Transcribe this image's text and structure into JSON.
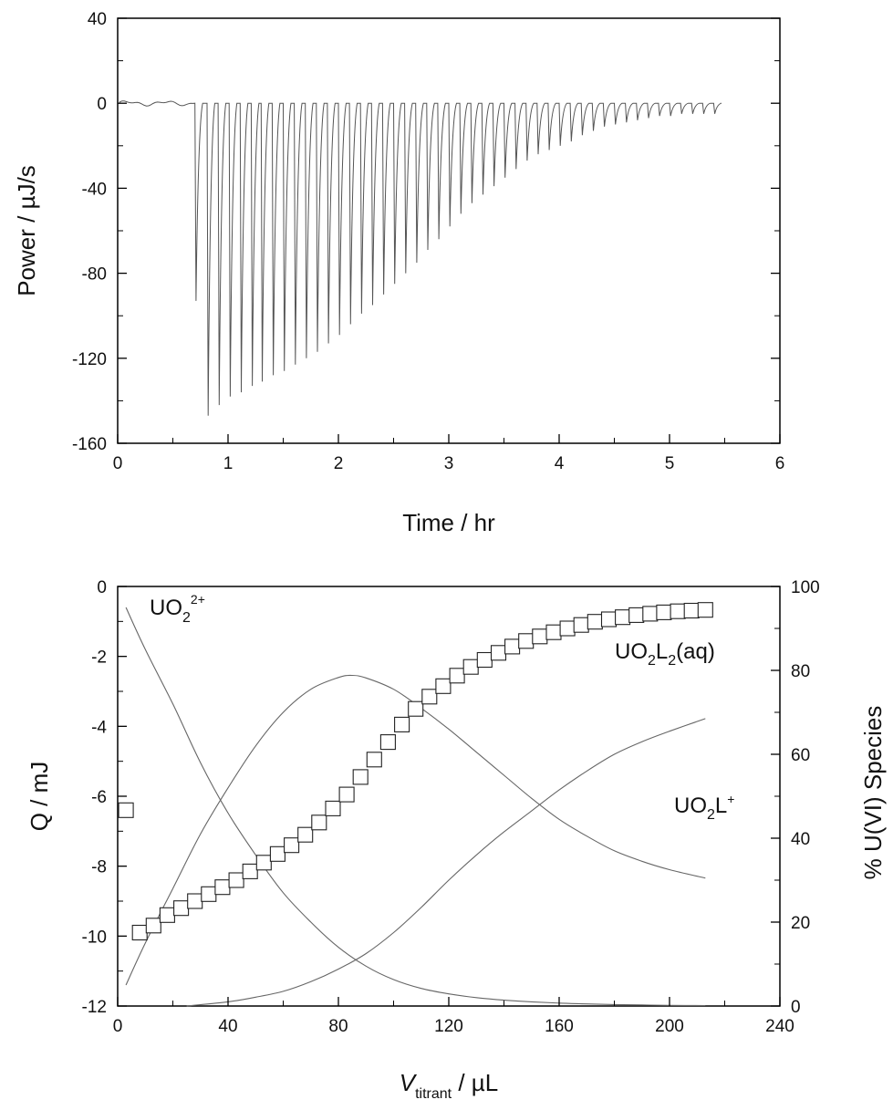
{
  "charts": {
    "top": {
      "type": "line",
      "xlabel": "Time / hr",
      "ylabel": "Power / µJ/s",
      "xlim": [
        0,
        6
      ],
      "ylim": [
        -160,
        40
      ],
      "xticks": [
        "0",
        "1",
        "2",
        "3",
        "4",
        "5",
        "6"
      ],
      "yticks": [
        "40",
        "0",
        "-40",
        "-80",
        "-120",
        "-160"
      ]
    },
    "bottom": {
      "xlabel_main": "V",
      "xlabel_sub": "titrant",
      "xlabel_unit": " / µL",
      "ylabel_left": "Q / mJ",
      "ylabel_right": "% U(VI) Species",
      "xticks": [
        "0",
        "40",
        "80",
        "120",
        "160",
        "200",
        "240"
      ],
      "yticks_left": [
        "0",
        "-2",
        "-4",
        "-6",
        "-8",
        "-10",
        "-12"
      ],
      "yticks_right": [
        "100",
        "80",
        "60",
        "40",
        "20",
        "0"
      ],
      "species": {
        "free": {
          "base": "UO",
          "sub": "2",
          "sup": "2+"
        },
        "ml2": {
          "base": "UO",
          "sub": "2",
          "mid": "L",
          "sub2": "2",
          "tail": "(aq)"
        },
        "ml": {
          "base": "UO",
          "sub": "2",
          "mid": "L",
          "sup": "+"
        }
      }
    }
  },
  "chart_data": [
    {
      "type": "line",
      "xlabel": "Time / hr",
      "ylabel": "Power / µJ/s",
      "xlim": [
        0,
        6
      ],
      "ylim": [
        -160,
        40
      ],
      "baseline_end_hr": 0.7,
      "peaks": {
        "time_hr": [
          0.71,
          0.82,
          0.92,
          1.02,
          1.12,
          1.22,
          1.31,
          1.41,
          1.51,
          1.61,
          1.71,
          1.81,
          1.91,
          2.01,
          2.11,
          2.21,
          2.31,
          2.41,
          2.51,
          2.61,
          2.71,
          2.81,
          2.91,
          3.01,
          3.11,
          3.21,
          3.31,
          3.41,
          3.51,
          3.61,
          3.71,
          3.81,
          3.91,
          4.01,
          4.11,
          4.21,
          4.31,
          4.41,
          4.51,
          4.61,
          4.71,
          4.81,
          4.91,
          5.01,
          5.11,
          5.21,
          5.31,
          5.41
        ],
        "power_uJs": [
          -93,
          -147,
          -142,
          -138,
          -136,
          -133,
          -131,
          -128,
          -126,
          -123,
          -120,
          -117,
          -113,
          -109,
          -104,
          -99,
          -95,
          -90,
          -85,
          -80,
          -75,
          -69,
          -64,
          -58,
          -52,
          -47,
          -43,
          -39,
          -35,
          -31,
          -27,
          -24,
          -22,
          -20,
          -18,
          -15,
          -13,
          -11,
          -10,
          -9,
          -8,
          -7,
          -6,
          -6,
          -5,
          -5,
          -5,
          -5
        ]
      }
    },
    {
      "type": "scatter",
      "xlabel": "V titrant / µL",
      "ylabel": "Q / mJ",
      "y2label": "% U(VI) Species",
      "xlim": [
        0,
        240
      ],
      "ylim": [
        -12,
        0
      ],
      "y2lim": [
        0,
        100
      ],
      "series": [
        {
          "name": "Q",
          "marker": "open-square",
          "x": [
            3,
            8,
            13,
            18,
            23,
            28,
            33,
            38,
            43,
            48,
            53,
            58,
            63,
            68,
            73,
            78,
            83,
            88,
            93,
            98,
            103,
            108,
            113,
            118,
            123,
            128,
            133,
            138,
            143,
            148,
            153,
            158,
            163,
            168,
            173,
            178,
            183,
            188,
            193,
            198,
            203,
            208,
            213
          ],
          "y": [
            -6.4,
            -9.9,
            -9.7,
            -9.4,
            -9.2,
            -9.0,
            -8.8,
            -8.6,
            -8.4,
            -8.15,
            -7.9,
            -7.65,
            -7.4,
            -7.1,
            -6.75,
            -6.35,
            -5.95,
            -5.45,
            -4.95,
            -4.45,
            -3.95,
            -3.5,
            -3.15,
            -2.85,
            -2.55,
            -2.3,
            -2.1,
            -1.9,
            -1.72,
            -1.56,
            -1.43,
            -1.31,
            -1.2,
            -1.1,
            -1.01,
            -0.94,
            -0.88,
            -0.82,
            -0.78,
            -0.74,
            -0.71,
            -0.69,
            -0.67
          ]
        },
        {
          "name": "UO2 2+",
          "axis": "right",
          "x": [
            3,
            10,
            20,
            30,
            40,
            50,
            60,
            70,
            80,
            90,
            100,
            110,
            120,
            130,
            140,
            150,
            160,
            170,
            180,
            190,
            200,
            213
          ],
          "y": [
            95,
            85,
            72,
            58,
            46,
            36,
            27,
            20,
            14,
            9.5,
            6.3,
            4.2,
            2.9,
            2.0,
            1.4,
            1.0,
            0.7,
            0.5,
            0.35,
            0.25,
            0.15,
            0.1
          ]
        },
        {
          "name": "UO2L+",
          "axis": "right",
          "x": [
            3,
            10,
            20,
            30,
            40,
            50,
            60,
            70,
            80,
            85,
            90,
            100,
            110,
            120,
            130,
            140,
            150,
            160,
            170,
            180,
            190,
            200,
            213
          ],
          "y": [
            5,
            15,
            28,
            41,
            52,
            62,
            70,
            75.5,
            78.3,
            78.8,
            78.2,
            75.5,
            71,
            66,
            60.5,
            55,
            49.5,
            44.5,
            40.5,
            37,
            34.5,
            32.5,
            30.5
          ]
        },
        {
          "name": "UO2L2(aq)",
          "axis": "right",
          "x": [
            25,
            40,
            50,
            60,
            70,
            80,
            90,
            100,
            110,
            120,
            130,
            140,
            150,
            160,
            170,
            180,
            190,
            200,
            213
          ],
          "y": [
            0,
            1.0,
            2.1,
            3.5,
            5.8,
            8.8,
            12.5,
            17.5,
            23.5,
            30.0,
            36.0,
            41.5,
            46.5,
            51.5,
            56.0,
            60.0,
            63.0,
            65.5,
            68.5
          ]
        }
      ]
    }
  ]
}
